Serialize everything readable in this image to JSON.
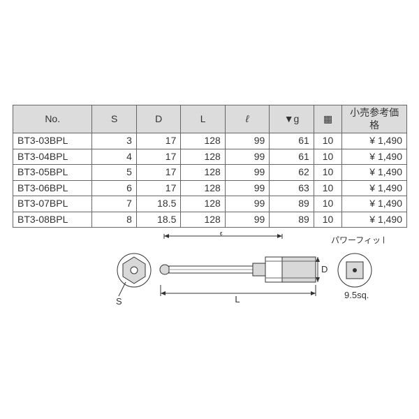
{
  "table": {
    "headers": {
      "no": "No.",
      "s": "S",
      "d": "D",
      "l": "L",
      "el": "ℓ",
      "g": "▼g",
      "qty": "▦",
      "price": "小売参考価格"
    },
    "rows": [
      {
        "no": "BT3-03BPL",
        "s": "3",
        "d": "17",
        "l": "128",
        "el": "99",
        "g": "61",
        "qty": "10",
        "price": "¥  1,490"
      },
      {
        "no": "BT3-04BPL",
        "s": "4",
        "d": "17",
        "l": "128",
        "el": "99",
        "g": "61",
        "qty": "10",
        "price": "¥  1,490"
      },
      {
        "no": "BT3-05BPL",
        "s": "5",
        "d": "17",
        "l": "128",
        "el": "99",
        "g": "62",
        "qty": "10",
        "price": "¥  1,490"
      },
      {
        "no": "BT3-06BPL",
        "s": "6",
        "d": "17",
        "l": "128",
        "el": "99",
        "g": "63",
        "qty": "10",
        "price": "¥  1,490"
      },
      {
        "no": "BT3-07BPL",
        "s": "7",
        "d": "18.5",
        "l": "128",
        "el": "99",
        "g": "89",
        "qty": "10",
        "price": "¥  1,490"
      },
      {
        "no": "BT3-08BPL",
        "s": "8",
        "d": "18.5",
        "l": "128",
        "el": "99",
        "g": "89",
        "qty": "10",
        "price": "¥  1,490"
      }
    ]
  },
  "diagram": {
    "label_el": "ℓ",
    "label_L": "L",
    "label_S": "S",
    "label_D": "D",
    "label_sq": "9.5sq.",
    "label_powerfit": "パワーフィット",
    "stroke": "#333333",
    "fill_body": "#ffffff",
    "fill_shade": "#d8d8d8",
    "font_size_labels": 13
  }
}
